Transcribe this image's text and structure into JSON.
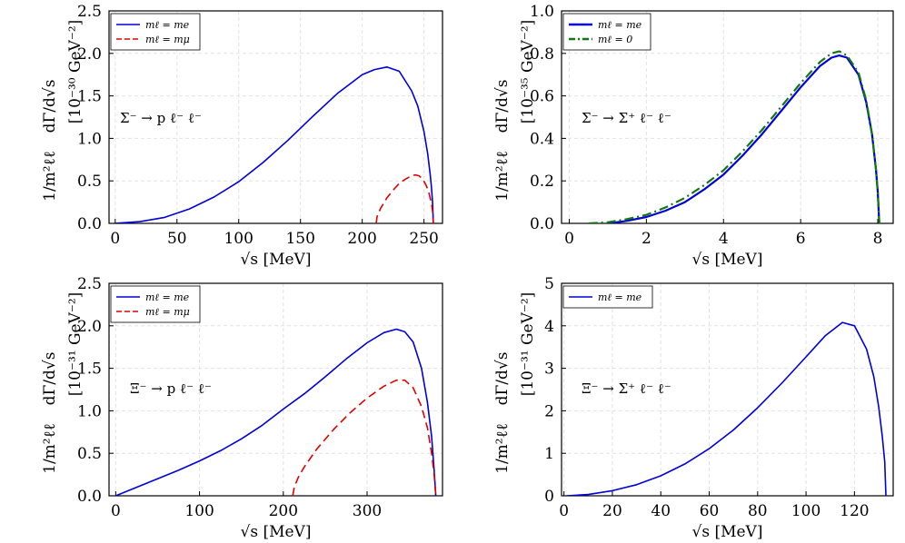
{
  "colors": {
    "blue": "#0000d8",
    "red": "#e00000",
    "green": "#117711",
    "grid": "#e2e2e2"
  },
  "chart_data": [
    {
      "type": "line",
      "annotation": "Σ⁻ → p ℓ⁻ ℓ⁻",
      "xlabel": "√s  [MeV]",
      "ylabel_unit": "[10⁻³⁰ GeV⁻²]",
      "ylabel_prefactor": "1/m²ℓℓ",
      "ylabel_derivative": "dΓ/d√s",
      "xlim": [
        -5,
        265
      ],
      "ylim": [
        0,
        2.5
      ],
      "xticks": [
        0,
        50,
        100,
        150,
        200,
        250
      ],
      "xtick_labels": [
        "0",
        "50",
        "100",
        "150",
        "200",
        "250"
      ],
      "yticks": [
        0,
        0.5,
        1.0,
        1.5,
        2.0,
        2.5
      ],
      "ytick_labels": [
        "0.0",
        "0.5",
        "1.0",
        "1.5",
        "2.0",
        "2.5"
      ],
      "legend": {
        "position": "top-left",
        "entries": [
          "mℓ = me",
          "mℓ = mμ"
        ]
      },
      "series": [
        {
          "name": "mℓ = me",
          "color": "blue",
          "style": "solid",
          "x": [
            0,
            20,
            40,
            60,
            80,
            100,
            120,
            140,
            160,
            180,
            200,
            210,
            220,
            230,
            240,
            245,
            250,
            253,
            255,
            256,
            257,
            257.6
          ],
          "y": [
            0,
            0.02,
            0.07,
            0.17,
            0.31,
            0.49,
            0.72,
            0.98,
            1.26,
            1.53,
            1.75,
            1.81,
            1.84,
            1.79,
            1.56,
            1.38,
            1.08,
            0.82,
            0.58,
            0.43,
            0.24,
            0.0
          ]
        },
        {
          "name": "mℓ = mμ",
          "color": "red",
          "style": "dashed",
          "x": [
            211.3,
            212,
            215,
            220,
            225,
            230,
            235,
            240,
            243,
            246,
            249,
            252,
            254,
            256,
            257,
            257.6
          ],
          "y": [
            0.0,
            0.08,
            0.18,
            0.3,
            0.39,
            0.47,
            0.52,
            0.56,
            0.57,
            0.56,
            0.52,
            0.44,
            0.36,
            0.24,
            0.14,
            0.0
          ]
        }
      ]
    },
    {
      "type": "line",
      "annotation": "Σ⁻ → Σ⁺ ℓ⁻ ℓ⁻",
      "xlabel": "√s  [MeV]",
      "ylabel_unit": "[10⁻³⁵ GeV⁻²]",
      "ylabel_prefactor": "1/m²ℓℓ",
      "ylabel_derivative": "dΓ/d√s",
      "xlim": [
        -0.2,
        8.4
      ],
      "ylim": [
        0,
        1.0
      ],
      "xticks": [
        0,
        2,
        4,
        6,
        8
      ],
      "xtick_labels": [
        "0",
        "2",
        "4",
        "6",
        "8"
      ],
      "yticks": [
        0,
        0.2,
        0.4,
        0.6,
        0.8,
        1.0
      ],
      "ytick_labels": [
        "0.0",
        "0.2",
        "0.4",
        "0.6",
        "0.8",
        "1.0"
      ],
      "legend": {
        "position": "top-left",
        "entries": [
          "mℓ = me",
          "mℓ = 0"
        ]
      },
      "series": [
        {
          "name": "mℓ = me",
          "color": "blue",
          "style": "solid",
          "x": [
            1.02,
            1.5,
            2,
            2.5,
            3,
            3.5,
            4,
            4.5,
            5,
            5.5,
            6,
            6.5,
            6.8,
            7,
            7.2,
            7.5,
            7.7,
            7.85,
            7.95,
            8.0,
            8.04
          ],
          "y": [
            0.0,
            0.012,
            0.03,
            0.06,
            0.1,
            0.16,
            0.23,
            0.32,
            0.42,
            0.53,
            0.64,
            0.74,
            0.78,
            0.79,
            0.78,
            0.7,
            0.57,
            0.42,
            0.26,
            0.15,
            0.0
          ]
        },
        {
          "name": "mℓ = 0",
          "color": "green",
          "style": "dashdot",
          "x": [
            0.5,
            1,
            1.5,
            2,
            2.5,
            3,
            3.5,
            4,
            4.5,
            5,
            5.5,
            6,
            6.5,
            6.8,
            7,
            7.2,
            7.5,
            7.7,
            7.85,
            7.95,
            8.0,
            8.04
          ],
          "y": [
            0.0,
            0.005,
            0.02,
            0.04,
            0.075,
            0.12,
            0.18,
            0.25,
            0.34,
            0.44,
            0.55,
            0.66,
            0.76,
            0.8,
            0.81,
            0.79,
            0.71,
            0.58,
            0.42,
            0.26,
            0.15,
            0.0
          ]
        }
      ]
    },
    {
      "type": "line",
      "annotation": "Ξ⁻ → p ℓ⁻ ℓ⁻",
      "xlabel": "√s [MeV]",
      "ylabel_unit": "[10⁻³¹ GeV⁻²]",
      "ylabel_prefactor": "1/m²ℓℓ",
      "ylabel_derivative": "dΓ/d√s",
      "xlim": [
        -8,
        390
      ],
      "ylim": [
        0,
        2.5
      ],
      "xticks": [
        0,
        100,
        200,
        300
      ],
      "xtick_labels": [
        "0",
        "100",
        "200",
        "300"
      ],
      "yticks": [
        0,
        0.5,
        1.0,
        1.5,
        2.0,
        2.5
      ],
      "ytick_labels": [
        "0.0",
        "0.5",
        "1.0",
        "1.5",
        "2.0",
        "2.5"
      ],
      "legend": {
        "position": "top-left",
        "entries": [
          "mℓ = me",
          "mℓ = mμ"
        ]
      },
      "series": [
        {
          "name": "mℓ = me",
          "color": "blue",
          "style": "solid",
          "x": [
            0,
            25,
            50,
            75,
            100,
            125,
            150,
            175,
            200,
            225,
            250,
            275,
            300,
            320,
            335,
            345,
            355,
            365,
            372,
            377,
            380,
            382
          ],
          "y": [
            0,
            0.1,
            0.2,
            0.3,
            0.41,
            0.53,
            0.67,
            0.83,
            1.02,
            1.2,
            1.4,
            1.61,
            1.8,
            1.92,
            1.96,
            1.93,
            1.81,
            1.5,
            1.1,
            0.7,
            0.3,
            0.0
          ]
        },
        {
          "name": "mℓ = mμ",
          "color": "red",
          "style": "dashed",
          "x": [
            211.3,
            213,
            218,
            225,
            240,
            260,
            280,
            300,
            320,
            335,
            345,
            355,
            365,
            372,
            377,
            380,
            382
          ],
          "y": [
            0.0,
            0.1,
            0.22,
            0.34,
            0.55,
            0.78,
            0.98,
            1.15,
            1.29,
            1.36,
            1.36,
            1.27,
            1.05,
            0.8,
            0.5,
            0.25,
            0.0
          ]
        }
      ]
    },
    {
      "type": "line",
      "annotation": "Ξ⁻ → Σ⁺ ℓ⁻ ℓ⁻",
      "xlabel": "√s [MeV]",
      "ylabel_unit": "[10⁻³¹ GeV⁻²]",
      "ylabel_prefactor": "1/m²ℓℓ",
      "ylabel_derivative": "dΓ/d√s",
      "xlim": [
        -1,
        136
      ],
      "ylim": [
        0,
        5
      ],
      "xticks": [
        0,
        20,
        40,
        60,
        80,
        100,
        120
      ],
      "xtick_labels": [
        "0",
        "20",
        "40",
        "60",
        "80",
        "100",
        "120"
      ],
      "yticks": [
        0,
        1,
        2,
        3,
        4,
        5
      ],
      "ytick_labels": [
        "0",
        "1",
        "2",
        "3",
        "4",
        "5"
      ],
      "legend": {
        "position": "top-left",
        "entries": [
          "mℓ = me"
        ]
      },
      "series": [
        {
          "name": "mℓ = me",
          "color": "blue",
          "style": "solid",
          "x": [
            1.02,
            10,
            20,
            30,
            40,
            50,
            60,
            70,
            80,
            90,
            100,
            108,
            115,
            120,
            125,
            128,
            130,
            131.5,
            132.5,
            133
          ],
          "y": [
            0.0,
            0.03,
            0.12,
            0.26,
            0.47,
            0.75,
            1.11,
            1.55,
            2.07,
            2.65,
            3.27,
            3.77,
            4.08,
            4.0,
            3.45,
            2.8,
            2.1,
            1.4,
            0.8,
            0.0
          ]
        }
      ]
    }
  ]
}
